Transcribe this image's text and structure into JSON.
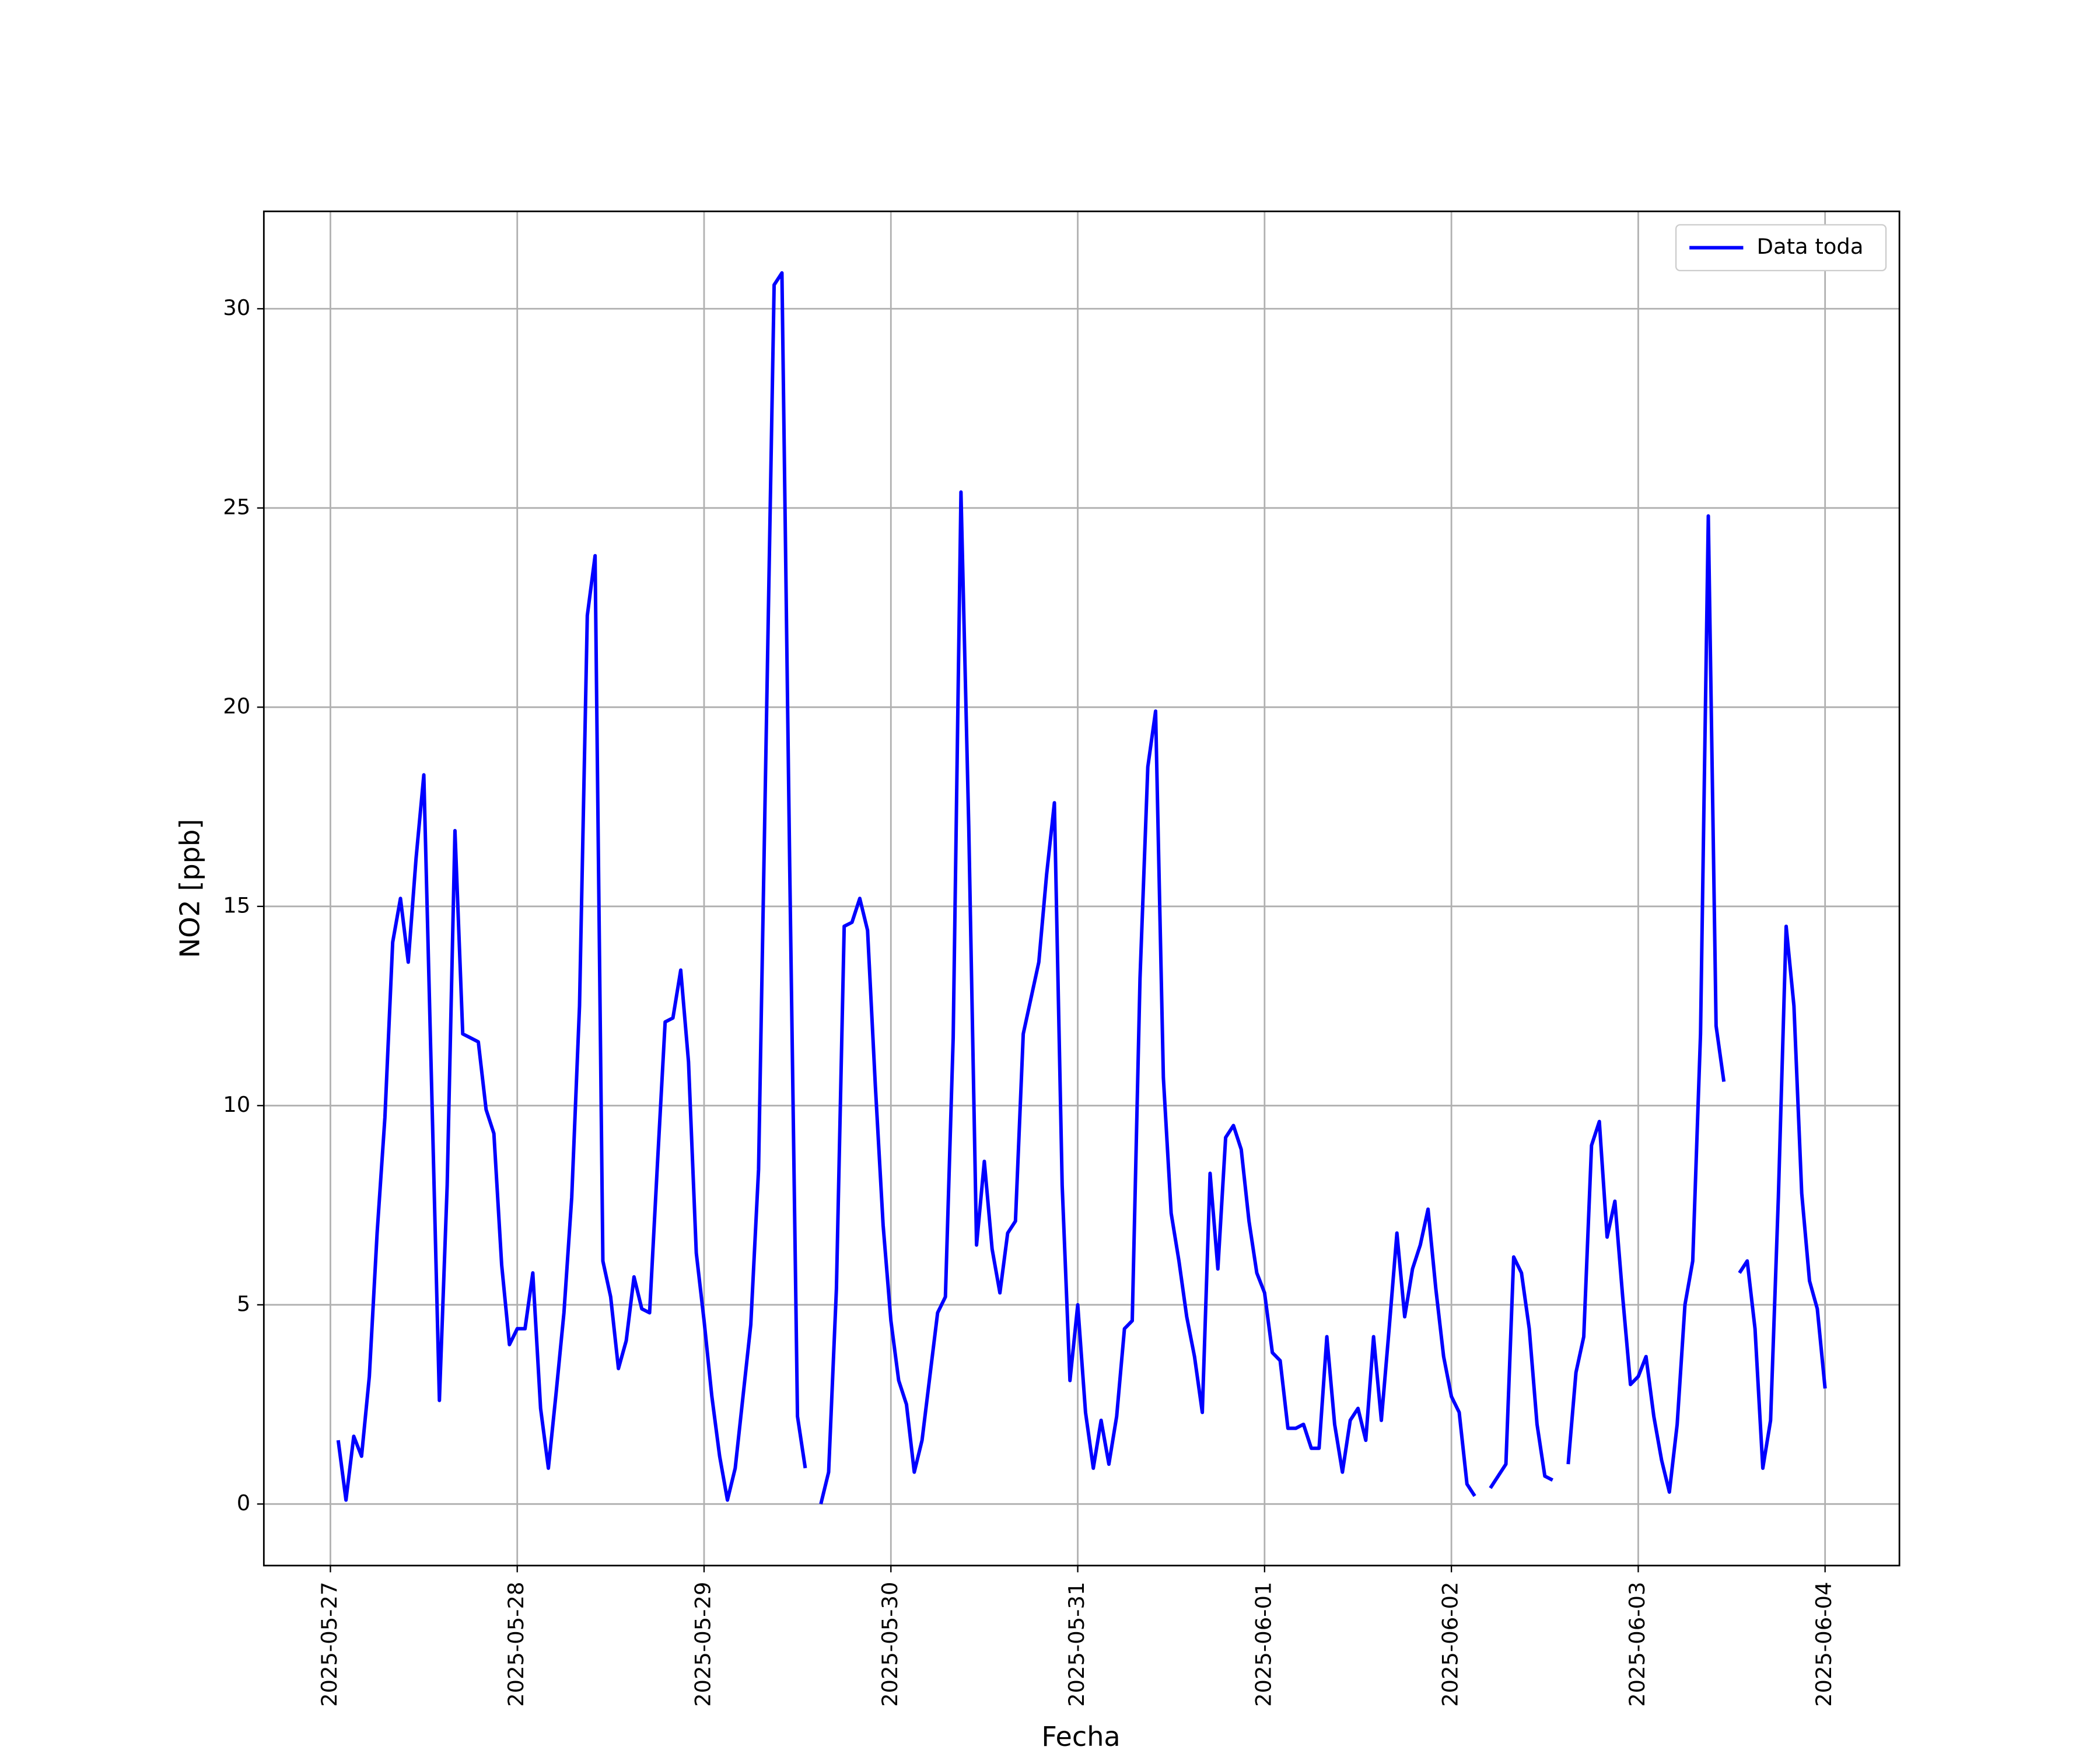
{
  "chart_data": {
    "type": "line",
    "xlabel": "Fecha",
    "ylabel": "NO2 [ppb]",
    "x": [
      "2025-05-27 01:00",
      "2025-05-27 02:00",
      "2025-05-27 03:00",
      "2025-05-27 04:00",
      "2025-05-27 05:00",
      "2025-05-27 06:00",
      "2025-05-27 07:00",
      "2025-05-27 08:00",
      "2025-05-27 09:00",
      "2025-05-27 10:00",
      "2025-05-27 11:00",
      "2025-05-27 12:00",
      "2025-05-27 13:00",
      "2025-05-27 14:00",
      "2025-05-27 15:00",
      "2025-05-27 16:00",
      "2025-05-27 17:00",
      "2025-05-27 18:00",
      "2025-05-27 19:00",
      "2025-05-27 20:00",
      "2025-05-27 21:00",
      "2025-05-27 22:00",
      "2025-05-27 23:00",
      "2025-05-28 00:00",
      "2025-05-28 01:00",
      "2025-05-28 02:00",
      "2025-05-28 03:00",
      "2025-05-28 04:00",
      "2025-05-28 05:00",
      "2025-05-28 06:00",
      "2025-05-28 07:00",
      "2025-05-28 08:00",
      "2025-05-28 09:00",
      "2025-05-28 10:00",
      "2025-05-28 11:00",
      "2025-05-28 12:00",
      "2025-05-28 13:00",
      "2025-05-28 14:00",
      "2025-05-28 15:00",
      "2025-05-28 16:00",
      "2025-05-28 17:00",
      "2025-05-28 18:00",
      "2025-05-28 19:00",
      "2025-05-28 20:00",
      "2025-05-28 21:00",
      "2025-05-28 22:00",
      "2025-05-28 23:00",
      "2025-05-29 00:00",
      "2025-05-29 01:00",
      "2025-05-29 02:00",
      "2025-05-29 03:00",
      "2025-05-29 04:00",
      "2025-05-29 05:00",
      "2025-05-29 06:00",
      "2025-05-29 07:00",
      "2025-05-29 08:00",
      "2025-05-29 09:00",
      "2025-05-29 10:00",
      "2025-05-29 11:00",
      "2025-05-29 12:00",
      "2025-05-29 13:00",
      "2025-05-29 14:00",
      "2025-05-29 15:00",
      "2025-05-29 16:00",
      "2025-05-29 17:00",
      "2025-05-29 18:00",
      "2025-05-29 19:00",
      "2025-05-29 20:00",
      "2025-05-29 21:00",
      "2025-05-29 22:00",
      "2025-05-29 23:00",
      "2025-05-30 00:00",
      "2025-05-30 01:00",
      "2025-05-30 02:00",
      "2025-05-30 03:00",
      "2025-05-30 04:00",
      "2025-05-30 05:00",
      "2025-05-30 06:00",
      "2025-05-30 07:00",
      "2025-05-30 08:00",
      "2025-05-30 09:00",
      "2025-05-30 10:00",
      "2025-05-30 11:00",
      "2025-05-30 12:00",
      "2025-05-30 13:00",
      "2025-05-30 14:00",
      "2025-05-30 15:00",
      "2025-05-30 16:00",
      "2025-05-30 17:00",
      "2025-05-30 18:00",
      "2025-05-30 19:00",
      "2025-05-30 20:00",
      "2025-05-30 21:00",
      "2025-05-30 22:00",
      "2025-05-30 23:00",
      "2025-05-31 00:00",
      "2025-05-31 01:00",
      "2025-05-31 02:00",
      "2025-05-31 03:00",
      "2025-05-31 04:00",
      "2025-05-31 05:00",
      "2025-05-31 06:00",
      "2025-05-31 07:00",
      "2025-05-31 08:00",
      "2025-05-31 09:00",
      "2025-05-31 10:00",
      "2025-05-31 11:00",
      "2025-05-31 12:00",
      "2025-05-31 13:00",
      "2025-05-31 14:00",
      "2025-05-31 15:00",
      "2025-05-31 16:00",
      "2025-05-31 17:00",
      "2025-05-31 18:00",
      "2025-05-31 19:00",
      "2025-05-31 20:00",
      "2025-05-31 21:00",
      "2025-05-31 22:00",
      "2025-05-31 23:00",
      "2025-06-01 00:00",
      "2025-06-01 01:00",
      "2025-06-01 02:00",
      "2025-06-01 03:00",
      "2025-06-01 04:00",
      "2025-06-01 05:00",
      "2025-06-01 06:00",
      "2025-06-01 07:00",
      "2025-06-01 08:00",
      "2025-06-01 09:00",
      "2025-06-01 10:00",
      "2025-06-01 11:00",
      "2025-06-01 12:00",
      "2025-06-01 13:00",
      "2025-06-01 14:00",
      "2025-06-01 15:00",
      "2025-06-01 16:00",
      "2025-06-01 17:00",
      "2025-06-01 18:00",
      "2025-06-01 19:00",
      "2025-06-01 20:00",
      "2025-06-01 21:00",
      "2025-06-01 22:00",
      "2025-06-01 23:00",
      "2025-06-02 00:00",
      "2025-06-02 01:00",
      "2025-06-02 02:00",
      "2025-06-02 03:00",
      "2025-06-02 04:00",
      "2025-06-02 05:00",
      "2025-06-02 06:00",
      "2025-06-02 07:00",
      "2025-06-02 08:00",
      "2025-06-02 09:00",
      "2025-06-02 10:00",
      "2025-06-02 11:00",
      "2025-06-02 12:00",
      "2025-06-02 13:00",
      "2025-06-02 14:00",
      "2025-06-02 15:00",
      "2025-06-02 16:00",
      "2025-06-02 17:00",
      "2025-06-02 18:00",
      "2025-06-02 19:00",
      "2025-06-02 20:00",
      "2025-06-02 21:00",
      "2025-06-02 22:00",
      "2025-06-02 23:00",
      "2025-06-03 00:00",
      "2025-06-03 01:00",
      "2025-06-03 02:00",
      "2025-06-03 03:00",
      "2025-06-03 04:00",
      "2025-06-03 05:00",
      "2025-06-03 06:00",
      "2025-06-03 07:00",
      "2025-06-03 08:00",
      "2025-06-03 09:00",
      "2025-06-03 10:00",
      "2025-06-03 11:00",
      "2025-06-03 12:00",
      "2025-06-03 13:00",
      "2025-06-03 14:00",
      "2025-06-03 15:00",
      "2025-06-03 16:00",
      "2025-06-03 17:00",
      "2025-06-03 18:00",
      "2025-06-03 19:00",
      "2025-06-03 20:00",
      "2025-06-03 21:00",
      "2025-06-03 22:00",
      "2025-06-03 23:00",
      "2025-06-04 00:00"
    ],
    "series": [
      {
        "name": "Data toda",
        "color": "#0000ff",
        "values": [
          1.6,
          0.1,
          1.7,
          1.2,
          3.2,
          6.8,
          9.7,
          14.1,
          15.2,
          13.6,
          16.2,
          18.3,
          10.5,
          2.6,
          8.0,
          16.9,
          11.8,
          11.7,
          11.6,
          9.9,
          9.3,
          6.0,
          4.0,
          4.4,
          4.4,
          5.8,
          2.4,
          0.9,
          2.8,
          4.8,
          7.7,
          12.5,
          22.3,
          23.8,
          6.1,
          5.2,
          3.4,
          4.1,
          5.7,
          4.9,
          4.8,
          8.5,
          12.1,
          12.2,
          13.4,
          11.1,
          6.3,
          4.6,
          2.7,
          1.2,
          0.1,
          0.9,
          2.7,
          4.5,
          8.4,
          19.5,
          30.6,
          30.9,
          16.0,
          2.2,
          0.9,
          null,
          0.0,
          0.8,
          5.4,
          14.5,
          14.6,
          15.2,
          14.4,
          10.5,
          7.0,
          4.6,
          3.1,
          2.5,
          0.8,
          1.6,
          3.2,
          4.8,
          5.2,
          11.7,
          25.4,
          17.0,
          6.5,
          8.6,
          6.4,
          5.3,
          6.8,
          7.1,
          11.8,
          12.7,
          13.6,
          15.8,
          17.6,
          8.0,
          3.1,
          5.0,
          2.3,
          0.9,
          2.1,
          1.0,
          2.2,
          4.4,
          4.6,
          13.2,
          18.5,
          19.9,
          10.7,
          7.3,
          6.1,
          4.7,
          3.7,
          2.3,
          8.3,
          5.9,
          9.2,
          9.5,
          8.9,
          7.1,
          5.8,
          5.3,
          3.8,
          3.6,
          1.9,
          1.9,
          2.0,
          1.4,
          1.4,
          4.2,
          2.0,
          0.8,
          2.1,
          2.4,
          1.6,
          4.2,
          2.1,
          4.4,
          6.8,
          4.7,
          5.9,
          6.5,
          7.4,
          5.4,
          3.7,
          2.7,
          2.3,
          0.5,
          0.2,
          null,
          0.4,
          0.7,
          1.0,
          6.2,
          5.8,
          4.4,
          2.0,
          0.7,
          0.6,
          null,
          1.0,
          3.3,
          4.2,
          9.0,
          9.6,
          6.7,
          7.6,
          5.2,
          3.0,
          3.2,
          3.7,
          2.2,
          1.1,
          0.3,
          2.0,
          5.0,
          6.1,
          11.8,
          24.8,
          12.0,
          10.6,
          null,
          5.8,
          6.1,
          4.4,
          0.9,
          2.1,
          7.7,
          14.5,
          12.5,
          7.8,
          5.6,
          4.9,
          2.9
        ]
      }
    ],
    "xlim": [
      "2025-05-26 15:27",
      "2025-06-04 09:33"
    ],
    "xticks": [
      "2025-05-27",
      "2025-05-28",
      "2025-05-29",
      "2025-05-30",
      "2025-05-31",
      "2025-06-01",
      "2025-06-02",
      "2025-06-03",
      "2025-06-04"
    ],
    "ylim": [
      -1.545,
      32.445
    ],
    "yticks": [
      0,
      5,
      10,
      15,
      20,
      25,
      30
    ],
    "grid": true,
    "legend": "upper-right"
  }
}
